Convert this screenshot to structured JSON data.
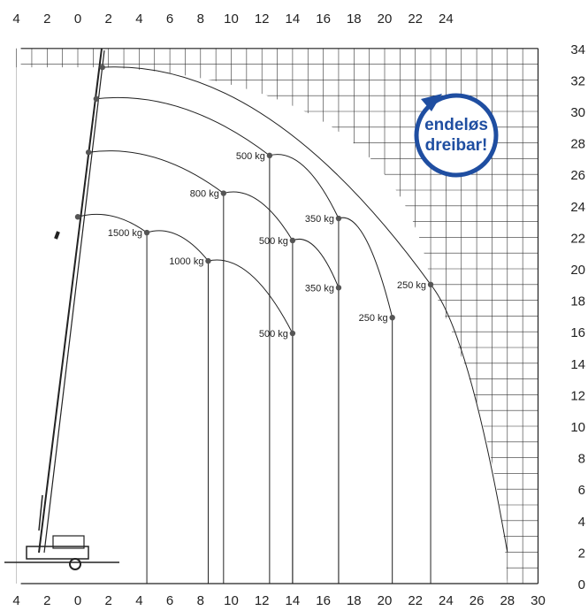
{
  "axes": {
    "top_ticks": [
      "4",
      "2",
      "0",
      "2",
      "4",
      "6",
      "8",
      "10",
      "12",
      "14",
      "16",
      "18",
      "20",
      "22",
      "24"
    ],
    "bottom_ticks": [
      "4",
      "2",
      "0",
      "2",
      "4",
      "6",
      "8",
      "10",
      "12",
      "14",
      "16",
      "18",
      "20",
      "22",
      "24",
      "26",
      "28",
      "30"
    ],
    "right_ticks": [
      "0",
      "2",
      "4",
      "6",
      "8",
      "10",
      "12",
      "14",
      "16",
      "18",
      "20",
      "22",
      "24",
      "26",
      "28",
      "30",
      "32",
      "34"
    ]
  },
  "chart_data": {
    "type": "scatter",
    "x_range": [
      -4,
      30
    ],
    "y_range": [
      0,
      34
    ],
    "grid": true,
    "load_points": [
      {
        "label": "1500 kg",
        "x": 4.5,
        "y": 22.3
      },
      {
        "label": "1000 kg",
        "x": 8.5,
        "y": 20.5
      },
      {
        "label": "500 kg",
        "x": 14.0,
        "y": 15.9
      },
      {
        "label": "800 kg",
        "x": 9.5,
        "y": 24.8
      },
      {
        "label": "500 kg",
        "x": 14.0,
        "y": 21.8
      },
      {
        "label": "350 kg",
        "x": 17.0,
        "y": 18.8
      },
      {
        "label": "500 kg",
        "x": 12.5,
        "y": 27.2
      },
      {
        "label": "350 kg",
        "x": 17.0,
        "y": 23.2
      },
      {
        "label": "250 kg",
        "x": 20.5,
        "y": 16.9
      },
      {
        "label": "250 kg",
        "x": 23.0,
        "y": 19.0
      }
    ],
    "curves": [
      [
        [
          0,
          23.3
        ],
        [
          4.5,
          22.3
        ],
        [
          8.5,
          20.5
        ],
        [
          14.0,
          15.9
        ]
      ],
      [
        [
          0.7,
          27.4
        ],
        [
          9.5,
          24.8
        ],
        [
          14.0,
          21.8
        ],
        [
          17.0,
          18.8
        ]
      ],
      [
        [
          1.2,
          30.8
        ],
        [
          12.5,
          27.2
        ],
        [
          17.0,
          23.2
        ],
        [
          20.5,
          16.9
        ]
      ],
      [
        [
          1.6,
          32.8
        ],
        [
          23.0,
          19.0
        ],
        [
          28.0,
          2.0
        ]
      ]
    ]
  },
  "badge": {
    "line1": "endeløs",
    "line2": "dreibar!",
    "color": "#1f4ea1"
  }
}
